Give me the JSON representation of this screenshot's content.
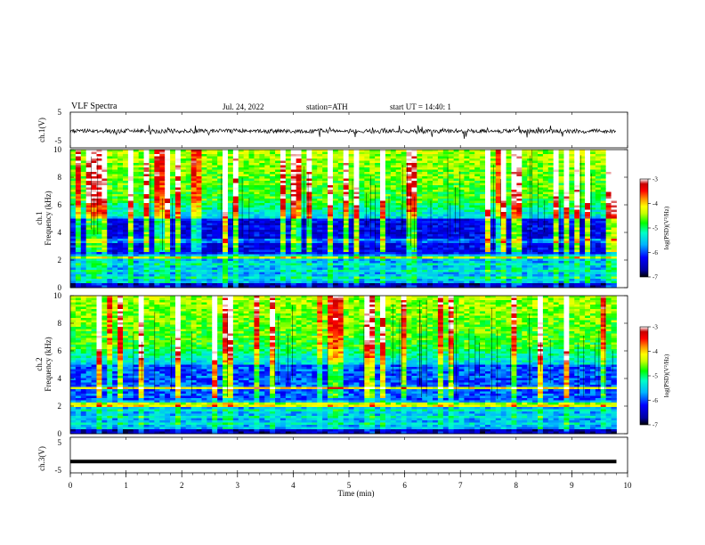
{
  "header": {
    "title": "VLF Spectra",
    "date": "Jul. 24, 2022",
    "station": "station=ATH",
    "start": "start UT = 14:40: 1"
  },
  "chart_data": [
    {
      "type": "line",
      "panel": "ch1-waveform",
      "ylabel": "ch.1(V)",
      "ylim": [
        -5,
        5
      ],
      "yticks": [
        "5",
        "-5"
      ],
      "xlim": [
        0,
        10
      ],
      "series": [
        {
          "x_extent": [
            0,
            9.8
          ],
          "baseline": -0.3,
          "noise_amplitude": 1.2
        }
      ]
    },
    {
      "type": "heatmap",
      "panel": "ch1-spectrogram",
      "ylabel": "ch.1\nFrequency (kHz)",
      "ylabel_line1": "ch.1",
      "ylabel_line2": "Frequency (kHz)",
      "ylim": [
        0,
        10
      ],
      "yticks": [
        "0",
        "2",
        "4",
        "6",
        "8",
        "10"
      ],
      "xlim": [
        0,
        9.8
      ],
      "colorbar": {
        "label": "log(PSD)(V²/Hz)",
        "ticks": [
          "-3",
          "-4",
          "-5",
          "-6",
          "-7"
        ],
        "range": [
          -7,
          -3
        ]
      }
    },
    {
      "type": "heatmap",
      "panel": "ch2-spectrogram",
      "ylabel_line1": "ch.2",
      "ylabel_line2": "Frequency (kHz)",
      "ylim": [
        0,
        10
      ],
      "yticks": [
        "0",
        "2",
        "4",
        "6",
        "8",
        "10"
      ],
      "xlim": [
        0,
        9.8
      ],
      "colorbar": {
        "label": "log(PSD)(V²/Hz)",
        "ticks": [
          "-3",
          "-4",
          "-5",
          "-6",
          "-7"
        ],
        "range": [
          -7,
          -3
        ]
      }
    },
    {
      "type": "line",
      "panel": "ch3-waveform",
      "ylabel": "ch.3(V)",
      "ylim": [
        -5,
        5
      ],
      "yticks": [
        "5",
        "-5"
      ],
      "xlim": [
        0,
        10
      ],
      "series": [
        {
          "x_extent": [
            0,
            9.8
          ],
          "value": -1.8
        }
      ]
    }
  ],
  "xaxis": {
    "label": "Time (min)",
    "ticks": [
      "0",
      "1",
      "2",
      "3",
      "4",
      "5",
      "6",
      "7",
      "8",
      "9",
      "10"
    ],
    "range": [
      0,
      10
    ]
  },
  "colors": [
    "#000000",
    "#0000a0",
    "#0000ff",
    "#00b4ff",
    "#00ffc8",
    "#00ff00",
    "#c8ff00",
    "#ffff00",
    "#ff8c00",
    "#ff0000",
    "#c80000",
    "#ffffff"
  ]
}
